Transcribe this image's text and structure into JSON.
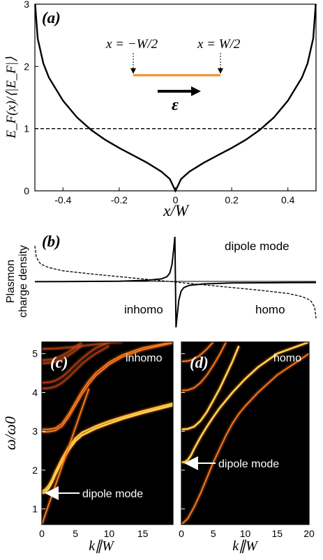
{
  "colors": {
    "curve": "#000000",
    "strip": "#f28c1c",
    "mode_bright": "#ffd54a",
    "mode_mid": "#ff7a1a",
    "mode_dim": "#c0311a",
    "panel_bg": "#000000",
    "arrow_white": "#ffffff"
  },
  "chart_data": [
    {
      "id": "a",
      "type": "line",
      "panel_label": "(a)",
      "xlabel": "x/W",
      "ylabel": "E_F(x)/⟨|E_F|⟩",
      "xlim": [
        -0.5,
        0.5
      ],
      "ylim": [
        0,
        3
      ],
      "xticks": [
        "-0.4",
        "-0.2",
        "0",
        "0.2",
        "0.4"
      ],
      "yticks": [
        "0",
        "1",
        "2",
        "3"
      ],
      "series": [
        {
          "style": "solid",
          "x": [
            -0.499,
            -0.49,
            -0.47,
            -0.45,
            -0.4,
            -0.35,
            -0.3,
            -0.25,
            -0.2,
            -0.15,
            -0.1,
            -0.05,
            -0.02,
            0,
            0.02,
            0.05,
            0.1,
            0.15,
            0.2,
            0.25,
            0.3,
            0.35,
            0.4,
            0.45,
            0.47,
            0.49,
            0.499
          ],
          "y": [
            3.0,
            2.45,
            2.05,
            1.82,
            1.45,
            1.18,
            0.98,
            0.82,
            0.69,
            0.57,
            0.45,
            0.31,
            0.19,
            0.0,
            0.19,
            0.31,
            0.45,
            0.57,
            0.69,
            0.82,
            0.98,
            1.18,
            1.45,
            1.82,
            2.05,
            2.45,
            3.0
          ]
        },
        {
          "style": "dashed",
          "x": [
            -0.5,
            0.5
          ],
          "y": [
            1,
            1
          ]
        }
      ],
      "annotations": {
        "left_edge": "x = −W/2",
        "right_edge": "x = W/2",
        "field": "ε"
      }
    },
    {
      "id": "b",
      "type": "line",
      "panel_label": "(b)",
      "ylabel_line1": "Plasmon",
      "ylabel_line2": "charge density",
      "mode_label": "dipole mode",
      "inhomo_label": "inhomo",
      "homo_label": "homo",
      "series": [
        {
          "name": "inhomo",
          "style": "solid",
          "x": [
            -0.5,
            -0.4,
            -0.3,
            -0.2,
            -0.1,
            -0.05,
            -0.03,
            -0.02,
            -0.012,
            -0.006,
            -0.002,
            0,
            0.002,
            0.006,
            0.012,
            0.02,
            0.03,
            0.05,
            0.1,
            0.2,
            0.3,
            0.4,
            0.5
          ],
          "y": [
            0.01,
            0.012,
            0.015,
            0.02,
            0.04,
            0.07,
            0.12,
            0.2,
            0.4,
            0.75,
            1.0,
            0.0,
            -1.0,
            -0.75,
            -0.4,
            -0.2,
            -0.12,
            -0.07,
            -0.04,
            -0.02,
            -0.015,
            -0.012,
            -0.01
          ]
        },
        {
          "name": "homo",
          "style": "dashed",
          "x": [
            -0.5,
            -0.495,
            -0.48,
            -0.45,
            -0.4,
            -0.3,
            -0.2,
            -0.1,
            0,
            0.1,
            0.2,
            0.3,
            0.4,
            0.45,
            0.48,
            0.495,
            0.5
          ],
          "y": [
            0.8,
            0.55,
            0.4,
            0.32,
            0.25,
            0.18,
            0.12,
            0.06,
            0.0,
            -0.06,
            -0.12,
            -0.18,
            -0.25,
            -0.32,
            -0.4,
            -0.55,
            -0.8
          ]
        }
      ]
    },
    {
      "id": "c",
      "type": "heatmap",
      "panel_label": "(c)",
      "corner_label": "inhomo",
      "xlabel": "k∥W",
      "ylabel": "ω/ω0",
      "xlim": [
        0,
        19.5
      ],
      "ylim": [
        0.6,
        5.3
      ],
      "xticks": [
        "0",
        "5",
        "10",
        "15"
      ],
      "yticks": [
        "1",
        "2",
        "3",
        "4",
        "5"
      ],
      "arrow_label": "dipole mode",
      "arrow_target": {
        "x": 0.3,
        "y": 1.45
      },
      "modes": [
        {
          "strength": "bright",
          "x": [
            0,
            0.5,
            1,
            1.5,
            2,
            3,
            4,
            5,
            6,
            8,
            10,
            12,
            15,
            19.5
          ],
          "y": [
            1.45,
            1.5,
            1.6,
            1.75,
            1.95,
            2.3,
            2.6,
            2.82,
            2.97,
            3.13,
            3.26,
            3.37,
            3.52,
            3.72
          ]
        },
        {
          "strength": "bright",
          "x": [
            0,
            0.5,
            1,
            1.5,
            2,
            3,
            4,
            5,
            6,
            8,
            10,
            12,
            15,
            19.5
          ],
          "y": [
            1.4,
            1.43,
            1.52,
            1.68,
            1.88,
            2.22,
            2.52,
            2.75,
            2.9,
            3.07,
            3.2,
            3.32,
            3.47,
            3.67
          ]
        },
        {
          "strength": "mid",
          "x": [
            0,
            1,
            2,
            3,
            4,
            5,
            6,
            7,
            8,
            10,
            12,
            15,
            19.5
          ],
          "y": [
            3.05,
            3.05,
            3.08,
            3.2,
            3.45,
            3.75,
            4.05,
            4.3,
            4.5,
            4.78,
            4.97,
            5.15,
            5.3
          ]
        },
        {
          "strength": "mid",
          "x": [
            0,
            1,
            2,
            3,
            4,
            5,
            6,
            7,
            8,
            10,
            12,
            15,
            19.5
          ],
          "y": [
            2.98,
            2.99,
            3.02,
            3.13,
            3.37,
            3.67,
            3.96,
            4.22,
            4.43,
            4.72,
            4.92,
            5.1,
            5.28
          ]
        },
        {
          "strength": "dim",
          "x": [
            0,
            1,
            2,
            3,
            4,
            5,
            6,
            7,
            8,
            10
          ],
          "y": [
            4.25,
            4.26,
            4.3,
            4.4,
            4.55,
            4.72,
            4.88,
            5.02,
            5.14,
            5.3
          ]
        },
        {
          "strength": "dim",
          "x": [
            0,
            1,
            2,
            3,
            4,
            5,
            6,
            7,
            8,
            10
          ],
          "y": [
            4.1,
            4.11,
            4.15,
            4.25,
            4.4,
            4.57,
            4.74,
            4.88,
            5.0,
            5.2
          ]
        },
        {
          "strength": "dim",
          "x": [
            0,
            1,
            2,
            3,
            4,
            5,
            6
          ],
          "y": [
            4.83,
            4.84,
            4.87,
            4.95,
            5.05,
            5.17,
            5.3
          ]
        },
        {
          "strength": "dim",
          "x": [
            0,
            1,
            2,
            3,
            4,
            5,
            6
          ],
          "y": [
            4.75,
            4.76,
            4.79,
            4.86,
            4.96,
            5.08,
            5.22
          ]
        },
        {
          "strength": "dim",
          "x": [
            0,
            2,
            4,
            6,
            8,
            10,
            12
          ],
          "y": [
            5.12,
            5.13,
            5.16,
            5.2,
            5.24,
            5.28,
            5.3
          ]
        },
        {
          "strength": "mid",
          "x": [
            0,
            1,
            2,
            3,
            4,
            5,
            6,
            7
          ],
          "y": [
            0.6,
            1.1,
            1.6,
            2.1,
            2.6,
            3.1,
            3.6,
            4.1
          ]
        }
      ]
    },
    {
      "id": "d",
      "type": "heatmap",
      "panel_label": "(d)",
      "corner_label": "homo",
      "xlabel": "k∥W",
      "xlim": [
        0,
        20
      ],
      "ylim": [
        0.6,
        5.3
      ],
      "xticks": [
        "0",
        "5",
        "10",
        "15",
        "20"
      ],
      "yticks": [
        "1",
        "2",
        "3",
        "4",
        "5"
      ],
      "arrow_label": "dipole mode",
      "arrow_target": {
        "x": 0.2,
        "y": 2.2
      },
      "modes": [
        {
          "strength": "bright",
          "x": [
            0,
            0.5,
            1,
            1.5,
            2,
            3,
            4,
            5,
            6,
            8,
            10,
            12,
            15,
            20
          ],
          "y": [
            2.2,
            2.21,
            2.26,
            2.38,
            2.55,
            2.85,
            3.12,
            3.37,
            3.6,
            4.0,
            4.35,
            4.65,
            5.0,
            5.3
          ]
        },
        {
          "strength": "bright",
          "x": [
            0,
            1,
            2,
            3,
            4,
            5,
            6,
            7,
            8,
            9
          ],
          "y": [
            3.05,
            3.06,
            3.12,
            3.27,
            3.5,
            3.8,
            4.1,
            4.45,
            4.8,
            5.2
          ]
        },
        {
          "strength": "mid",
          "x": [
            0,
            1,
            2,
            3,
            4,
            5,
            6,
            7
          ],
          "y": [
            4.05,
            4.06,
            4.12,
            4.25,
            4.45,
            4.7,
            4.98,
            5.3
          ]
        },
        {
          "strength": "mid",
          "x": [
            0,
            1,
            2,
            3,
            4,
            5
          ],
          "y": [
            4.8,
            4.81,
            4.86,
            4.97,
            5.12,
            5.3
          ]
        },
        {
          "strength": "mid",
          "x": [
            0,
            1,
            2,
            3,
            4,
            5,
            6,
            7,
            8,
            9,
            10,
            12,
            15,
            20
          ],
          "y": [
            0.6,
            0.75,
            1.05,
            1.4,
            1.8,
            2.2,
            2.55,
            2.9,
            3.2,
            3.45,
            3.65,
            4.0,
            4.45,
            5.0
          ]
        }
      ]
    }
  ]
}
